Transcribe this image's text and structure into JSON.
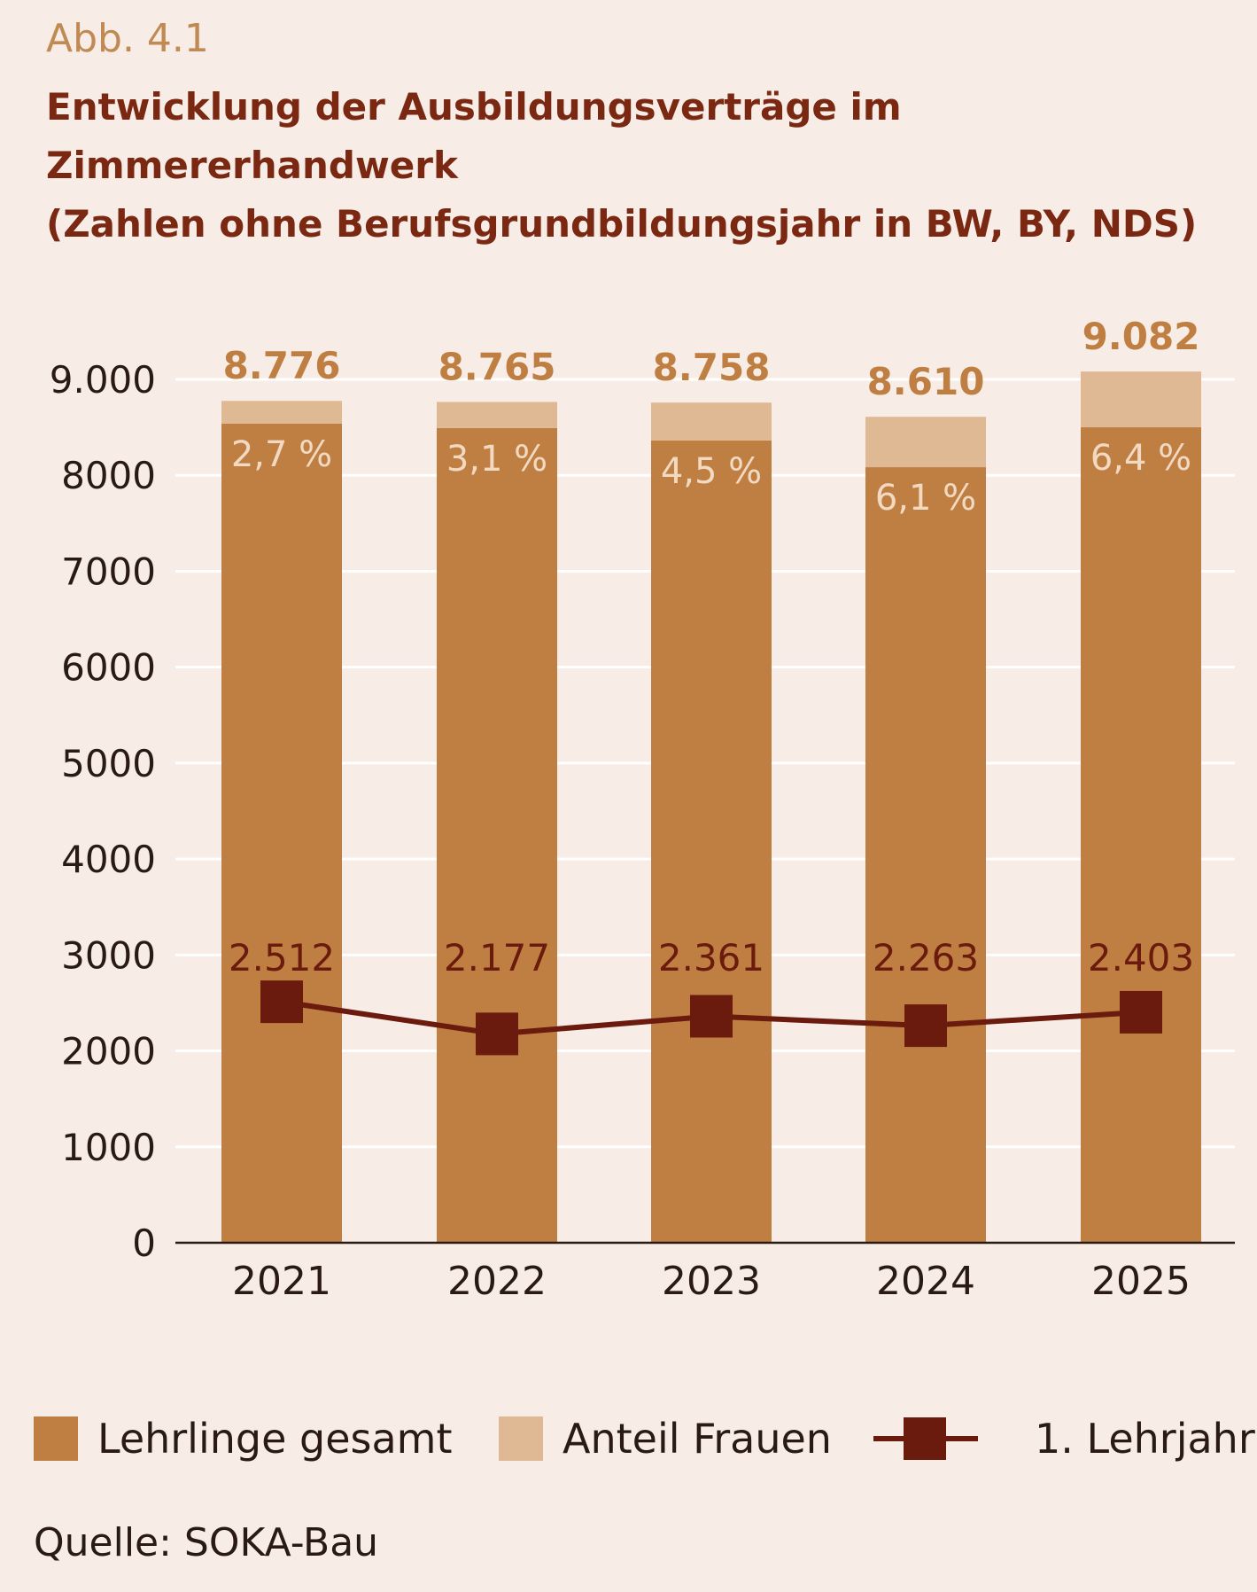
{
  "figure_label": "Abb. 4.1",
  "title_line1": "Entwicklung der Ausbildungsverträge im Zimmererhandwerk",
  "title_line2": "(Zahlen ohne Berufsgrundbildungsjahr in BW, BY, NDS)",
  "source": "Quelle: SOKA-Bau",
  "colors": {
    "background": "#f7ece6",
    "bar_total": "#c07f42",
    "bar_women": "#dfb994",
    "line": "#6b1a0e",
    "total_label": "#c07f42",
    "pct_label": "#f2d9c2",
    "line_label": "#6b1a0e",
    "grid": "#ffffff",
    "axis": "#2a1a14"
  },
  "legend": {
    "total": "Lehrlinge gesamt",
    "women": "Anteil Frauen",
    "first_year": "1. Lehrjahr"
  },
  "chart_data": {
    "type": "bar",
    "categories": [
      "2021",
      "2022",
      "2023",
      "2024",
      "2025"
    ],
    "series": [
      {
        "name": "Lehrlinge gesamt",
        "values": [
          8776,
          8765,
          8758,
          8610,
          9082
        ]
      },
      {
        "name": "Anteil Frauen",
        "values": [
          2.7,
          3.1,
          4.5,
          6.1,
          6.4
        ]
      },
      {
        "name": "1. Lehrjahr",
        "values": [
          2512,
          2177,
          2361,
          2263,
          2403
        ]
      }
    ],
    "total_labels": [
      "8.776",
      "8.765",
      "8.758",
      "8.610",
      "9.082"
    ],
    "women_share_labels": [
      "2,7 %",
      "3,1 %",
      "4,5 %",
      "6,1 %",
      "6,4 %"
    ],
    "first_year_labels": [
      "2.512",
      "2.177",
      "2.361",
      "2.263",
      "2.403"
    ],
    "ytick_labels": [
      "0",
      "1000",
      "2000",
      "3000",
      "4000",
      "5000",
      "6000",
      "7000",
      "8000",
      "9.000"
    ],
    "ytick_values": [
      0,
      1000,
      2000,
      3000,
      4000,
      5000,
      6000,
      7000,
      8000,
      9000
    ],
    "ylim": [
      0,
      9000
    ],
    "grid": true,
    "legend_position": "bottom"
  }
}
